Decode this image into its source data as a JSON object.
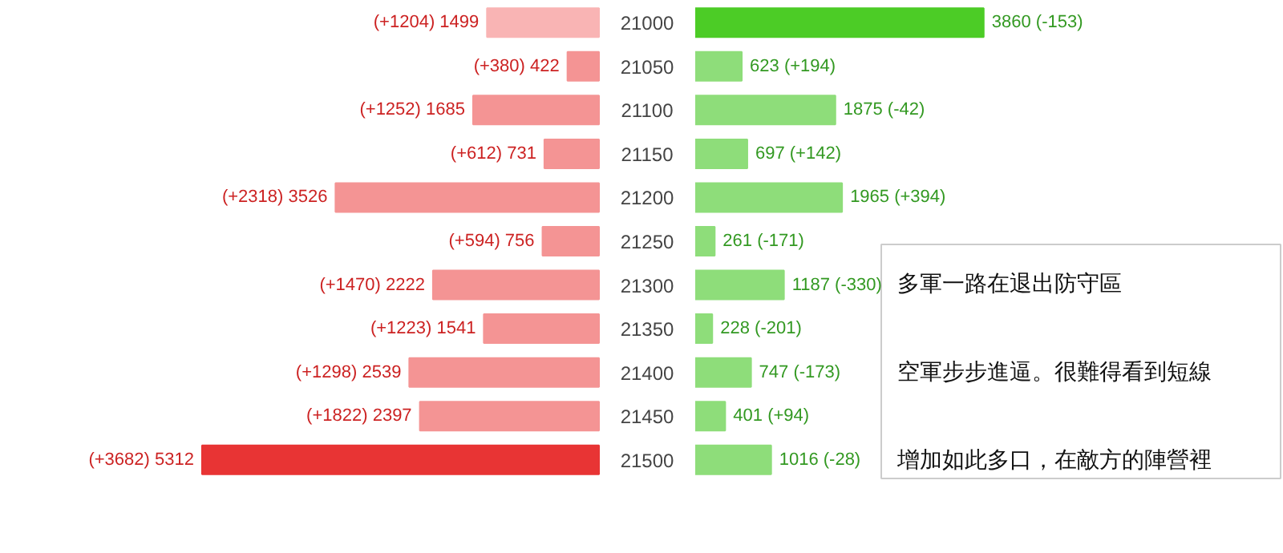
{
  "chart_data": [
    {
      "type": "bar",
      "orientation": "horizontal",
      "categories": [
        "21000",
        "21050",
        "21100",
        "21150",
        "21200",
        "21250",
        "21300",
        "21350",
        "21400",
        "21450",
        "21500"
      ],
      "colors": [
        "#f9b4b4",
        "#f49494",
        "#f49494",
        "#f49494",
        "#f49494",
        "#f49494",
        "#f49494",
        "#f49494",
        "#f49494",
        "#f49494",
        "#e83434"
      ],
      "values": [
        1499,
        422,
        1685,
        731,
        3526,
        756,
        2222,
        1541,
        2539,
        2397,
        5312
      ],
      "value_labels": [
        "(+1204) 1499",
        "(+380) 422",
        "(+1252) 1685",
        "(+612) 731",
        "(+2318) 3526",
        "(+594) 756",
        "(+1470) 2222",
        "(+1223) 1541",
        "(+1298) 2539",
        "(+1822) 2397",
        "(+3682) 5312"
      ]
    },
    {
      "type": "bar",
      "orientation": "horizontal",
      "tick_labels": false,
      "categories": [
        "21000",
        "21050",
        "21100",
        "21150",
        "21200",
        "21250",
        "21300",
        "21350",
        "21400",
        "21450",
        "21500"
      ],
      "colors": [
        "#4ccc26",
        "#8edd7a",
        "#8edd7a",
        "#8edd7a",
        "#8edd7a",
        "#8edd7a",
        "#8edd7a",
        "#8edd7a",
        "#8edd7a",
        "#8edd7a",
        "#8edd7a"
      ],
      "values": [
        3860,
        623,
        1875,
        697,
        1965,
        261,
        1187,
        228,
        747,
        401,
        1016
      ],
      "value_labels": [
        "3860 (-153)",
        "623 (+194)",
        "1875 (-42)",
        "697 (+142)",
        "1965 (+394)",
        "261 (-171)",
        "1187 (-330)",
        "228 (-201)",
        "747 (-173)",
        "401 (+94)",
        "1016 (-28)"
      ],
      "annotations": [
        "多軍一路在退出防守區",
        "空軍步步進逼。很難得看到短線",
        "增加如此多口，在敵方的陣營裡"
      ]
    }
  ]
}
